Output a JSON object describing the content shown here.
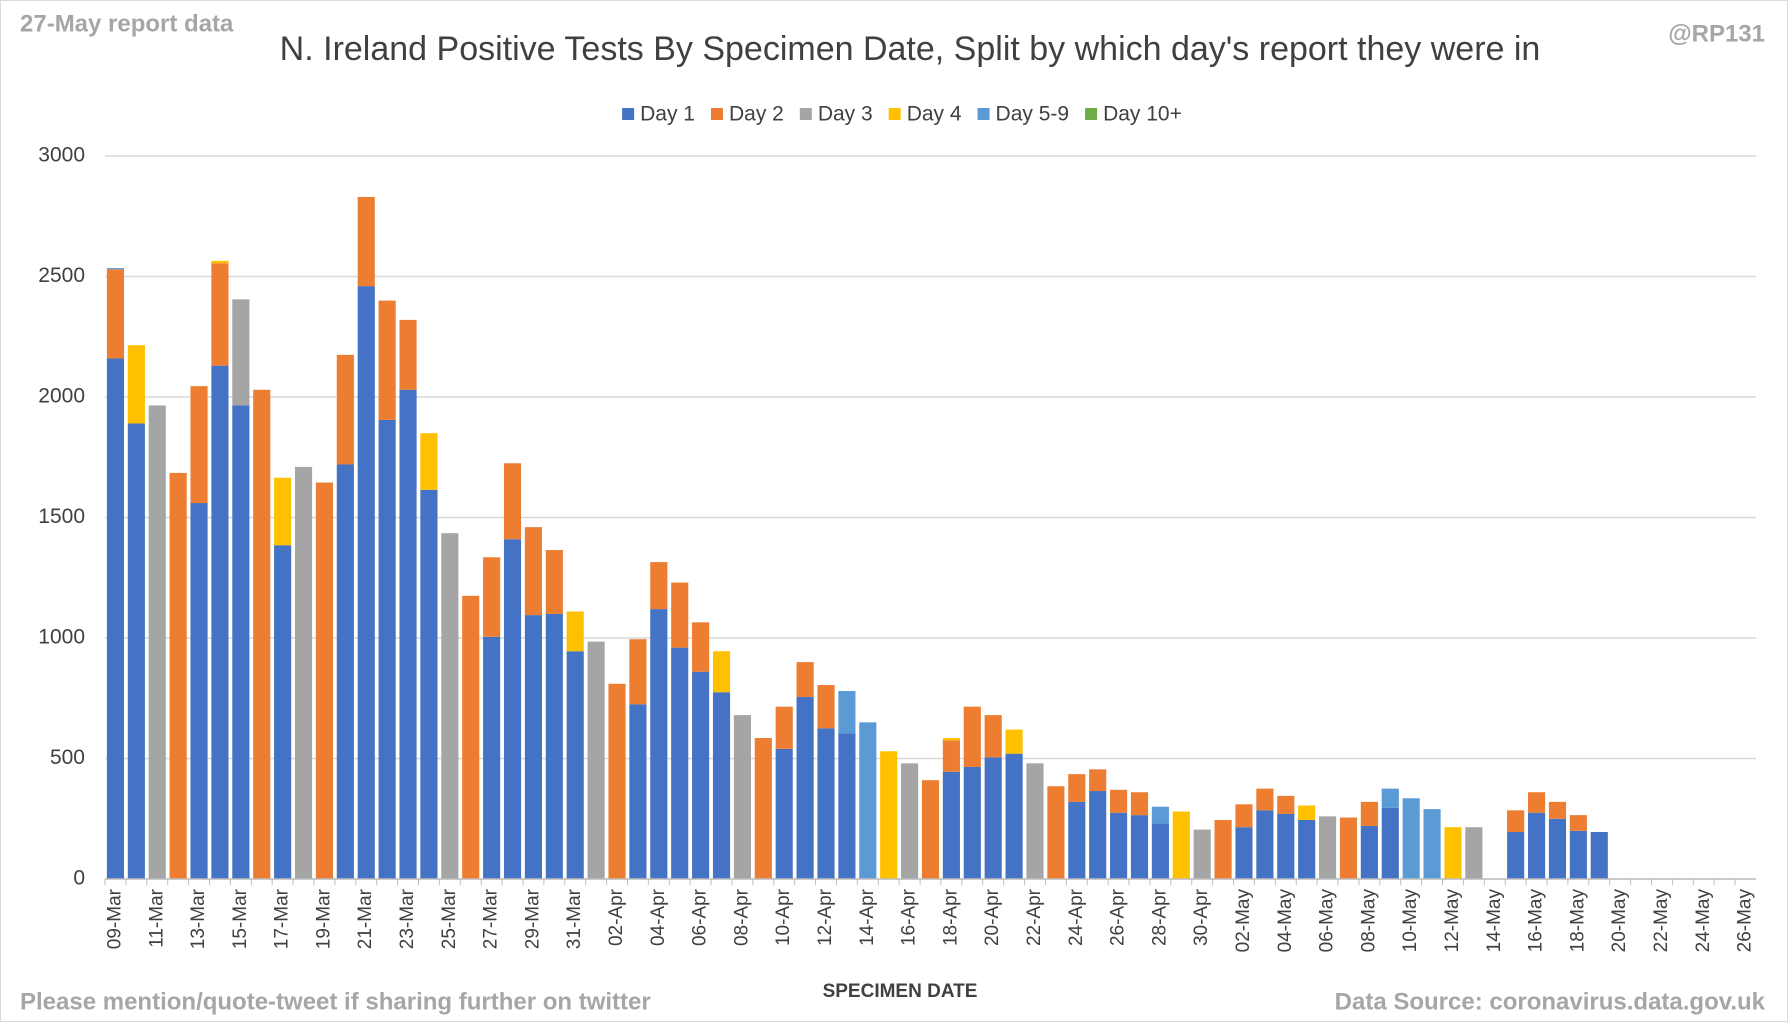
{
  "chart_data": {
    "type": "stacked_bar",
    "title": "N. Ireland Positive Tests By Specimen Date, Split by which day's report they were in",
    "x_label": "SPECIMEN DATE",
    "annotations": [
      "27-May report data",
      "@RP131",
      "Please mention/quote-tweet if sharing further on twitter",
      "Data Source: coronavirus.data.gov.uk"
    ],
    "categories": [
      "09-Mar",
      null,
      "11-Mar",
      null,
      "13-Mar",
      null,
      "15-Mar",
      null,
      "17-Mar",
      null,
      "19-Mar",
      null,
      "21-Mar",
      null,
      "23-Mar",
      null,
      "25-Mar",
      null,
      "27-Mar",
      null,
      "29-Mar",
      null,
      "31-Mar",
      null,
      "02-Apr",
      null,
      "04-Apr",
      null,
      "06-Apr",
      null,
      "08-Apr",
      null,
      "10-Apr",
      null,
      "12-Apr",
      null,
      "14-Apr",
      null,
      "16-Apr",
      null,
      "18-Apr",
      null,
      "20-Apr",
      null,
      "22-Apr",
      null,
      "24-Apr",
      null,
      "26-Apr",
      null,
      "28-Apr",
      null,
      "30-Apr",
      null,
      "02-May",
      null,
      "04-May",
      null,
      "06-May",
      null,
      "08-May",
      null,
      "10-May",
      null,
      "12-May",
      null,
      "14-May",
      null,
      "16-May",
      null,
      "18-May",
      null,
      "20-May",
      null,
      "22-May",
      null,
      "24-May",
      null,
      "26-May"
    ],
    "series": [
      {
        "name": "Day 1",
        "color": "#4472c4",
        "values": [
          2160,
          1890,
          null,
          null,
          1560,
          2130,
          1965,
          null,
          1385,
          null,
          null,
          1720,
          2460,
          1905,
          2030,
          1615,
          null,
          null,
          1005,
          1410,
          1095,
          1100,
          945,
          null,
          null,
          725,
          1120,
          960,
          860,
          775,
          null,
          null,
          540,
          755,
          625,
          605,
          null,
          null,
          null,
          null,
          445,
          465,
          505,
          520,
          null,
          null,
          320,
          365,
          275,
          265,
          230,
          null,
          null,
          null,
          215,
          285,
          270,
          245,
          null,
          null,
          220,
          295,
          null,
          null,
          null,
          null,
          null,
          195,
          275,
          250,
          200,
          195,
          null,
          null,
          null,
          null,
          null,
          null,
          null
        ]
      },
      {
        "name": "Day 2",
        "color": "#ed7d31",
        "values": [
          370,
          null,
          null,
          1685,
          485,
          425,
          null,
          2030,
          null,
          null,
          1645,
          455,
          370,
          495,
          290,
          null,
          null,
          1175,
          330,
          315,
          365,
          265,
          null,
          null,
          810,
          270,
          195,
          270,
          205,
          null,
          null,
          585,
          175,
          145,
          180,
          null,
          null,
          null,
          null,
          410,
          130,
          250,
          175,
          null,
          null,
          385,
          115,
          90,
          95,
          95,
          null,
          null,
          null,
          245,
          95,
          90,
          75,
          null,
          null,
          255,
          100,
          null,
          null,
          null,
          null,
          null,
          null,
          90,
          85,
          70,
          65,
          null,
          null,
          null,
          null,
          null,
          null,
          null,
          null
        ]
      },
      {
        "name": "Day 3",
        "color": "#a5a5a5",
        "values": [
          null,
          null,
          1965,
          null,
          null,
          null,
          440,
          null,
          null,
          1710,
          null,
          null,
          null,
          null,
          null,
          null,
          1435,
          null,
          null,
          null,
          null,
          null,
          null,
          985,
          null,
          null,
          null,
          null,
          null,
          null,
          680,
          null,
          null,
          null,
          null,
          null,
          null,
          null,
          480,
          null,
          null,
          null,
          null,
          null,
          480,
          null,
          null,
          null,
          null,
          null,
          null,
          null,
          205,
          null,
          null,
          null,
          null,
          null,
          260,
          null,
          null,
          null,
          null,
          null,
          null,
          215,
          null,
          null,
          null,
          null,
          null,
          null,
          null,
          null,
          null,
          null,
          null,
          null,
          null
        ]
      },
      {
        "name": "Day 4",
        "color": "#ffc000",
        "values": [
          null,
          325,
          null,
          null,
          null,
          10,
          null,
          null,
          280,
          null,
          null,
          null,
          null,
          null,
          null,
          235,
          null,
          null,
          null,
          null,
          null,
          null,
          165,
          null,
          null,
          null,
          null,
          null,
          null,
          170,
          null,
          null,
          null,
          null,
          null,
          null,
          null,
          530,
          null,
          null,
          10,
          null,
          null,
          100,
          null,
          null,
          null,
          null,
          null,
          null,
          null,
          280,
          null,
          null,
          null,
          null,
          null,
          60,
          null,
          null,
          null,
          null,
          null,
          null,
          215,
          null,
          null,
          null,
          null,
          null,
          null,
          null,
          null,
          null,
          null,
          null,
          null,
          null,
          null
        ]
      },
      {
        "name": "Day 5-9",
        "color": "#5b9bd5",
        "values": [
          5,
          null,
          null,
          null,
          null,
          null,
          null,
          null,
          null,
          null,
          null,
          null,
          null,
          null,
          null,
          null,
          null,
          null,
          null,
          null,
          null,
          null,
          null,
          null,
          null,
          null,
          null,
          null,
          null,
          null,
          null,
          null,
          null,
          null,
          null,
          175,
          650,
          null,
          null,
          null,
          null,
          null,
          null,
          null,
          null,
          null,
          null,
          null,
          null,
          null,
          70,
          null,
          null,
          null,
          null,
          null,
          null,
          null,
          null,
          null,
          null,
          80,
          335,
          290,
          null,
          null,
          null,
          null,
          null,
          null,
          null,
          null,
          null,
          null,
          null,
          null,
          null,
          null,
          null
        ]
      },
      {
        "name": "Day 10+",
        "color": "#70ad47",
        "values": [
          null,
          null,
          null,
          null,
          null,
          null,
          null,
          null,
          null,
          null,
          null,
          null,
          null,
          null,
          null,
          null,
          null,
          null,
          null,
          null,
          null,
          null,
          null,
          null,
          null,
          null,
          null,
          null,
          null,
          null,
          null,
          null,
          null,
          null,
          null,
          null,
          null,
          null,
          null,
          null,
          null,
          null,
          null,
          null,
          null,
          null,
          null,
          null,
          null,
          null,
          null,
          null,
          null,
          null,
          null,
          null,
          null,
          null,
          null,
          null,
          null,
          null,
          null,
          null,
          null,
          null,
          null,
          null,
          null,
          null,
          null,
          null,
          null,
          null,
          null,
          null,
          null,
          null,
          null
        ]
      }
    ],
    "ylim": [
      0,
      3000
    ],
    "yticks": [
      0,
      500,
      1000,
      1500,
      2000,
      2500,
      3000
    ],
    "grid": true,
    "legend": "top"
  }
}
